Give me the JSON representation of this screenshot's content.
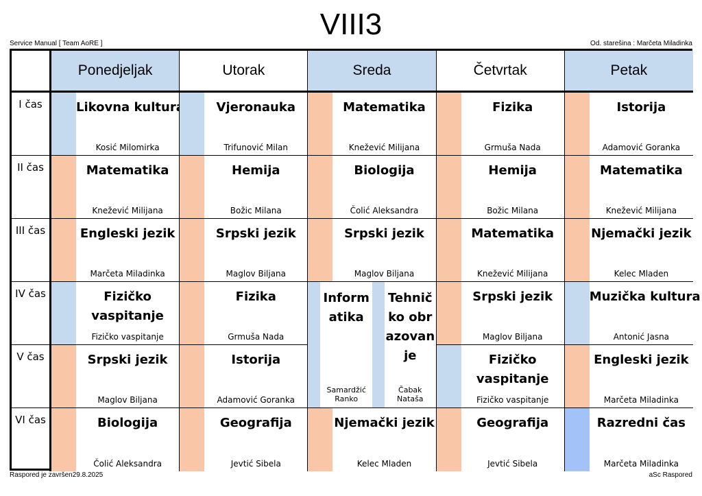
{
  "title": "VIII3",
  "header_left": "Service Manual [ Team AoRE ]",
  "header_right": "Od. starešina : Marčeta Miladinka",
  "footer_left": "Raspored je završen29.8.2025",
  "footer_right": "aSc Raspored",
  "colors": {
    "orange": "#f9c6a8",
    "blue": "#c5d9ef",
    "strongblue": "#a3c2f7"
  },
  "days": [
    "Ponedjeljak",
    "Utorak",
    "Sreda",
    "Četvrtak",
    "Petak"
  ],
  "periods": [
    "I čas",
    "II čas",
    "III čas",
    "IV čas",
    "V čas",
    "VI čas"
  ],
  "lessons": {
    "mon": [
      {
        "subject": "Likovna kultura",
        "teacher": "Kosić Milomirka",
        "color": "blue"
      },
      {
        "subject": "Matematika",
        "teacher": "Knežević Milijana",
        "color": "orange"
      },
      {
        "subject": "Engleski jezik",
        "teacher": "Marčeta Miladinka",
        "color": "orange"
      },
      {
        "subject": "Fizičko vaspitanje",
        "teacher": "Fizičko vaspitanje",
        "color": "blue"
      },
      {
        "subject": "Srpski jezik",
        "teacher": "Maglov Biljana",
        "color": "orange"
      },
      {
        "subject": "Biologija",
        "teacher": "Čolić Aleksandra",
        "color": "orange"
      }
    ],
    "tue": [
      {
        "subject": "Vjeronauka",
        "teacher": "Trifunović Milan",
        "color": "blue"
      },
      {
        "subject": "Hemija",
        "teacher": "Božic Milana",
        "color": "orange"
      },
      {
        "subject": "Srpski jezik",
        "teacher": "Maglov Biljana",
        "color": "orange"
      },
      {
        "subject": "Fizika",
        "teacher": "Grmuša Nada",
        "color": "orange"
      },
      {
        "subject": "Istorija",
        "teacher": "Adamović Goranka",
        "color": "orange"
      },
      {
        "subject": "Geografija",
        "teacher": "Jevtić Sibela",
        "color": "orange"
      }
    ],
    "wed": [
      {
        "subject": "Matematika",
        "teacher": "Knežević Milijana",
        "color": "orange"
      },
      {
        "subject": "Biologija",
        "teacher": "Čolić Aleksandra",
        "color": "orange"
      },
      {
        "subject": "Srpski jezik",
        "teacher": "Maglov Biljana",
        "color": "orange"
      },
      {
        "subject": "Njemački jezik",
        "teacher": "Kelec Mladen",
        "color": "orange"
      }
    ],
    "wed_split": [
      {
        "subject": "Informatika",
        "teacher": "Samardžić Ranko",
        "color": "blue"
      },
      {
        "subject": "Tehničko obrazovanje",
        "teacher": "Čabak Nataša",
        "color": "blue"
      }
    ],
    "thu": [
      {
        "subject": "Fizika",
        "teacher": "Grmuša Nada",
        "color": "orange"
      },
      {
        "subject": "Hemija",
        "teacher": "Božic Milana",
        "color": "orange"
      },
      {
        "subject": "Matematika",
        "teacher": "Knežević Milijana",
        "color": "orange"
      },
      {
        "subject": "Srpski jezik",
        "teacher": "Maglov Biljana",
        "color": "orange"
      },
      {
        "subject": "Fizičko vaspitanje",
        "teacher": "Fizičko vaspitanje",
        "color": "blue"
      },
      {
        "subject": "Geografija",
        "teacher": "Jevtić Sibela",
        "color": "orange"
      }
    ],
    "fri": [
      {
        "subject": "Istorija",
        "teacher": "Adamović Goranka",
        "color": "orange"
      },
      {
        "subject": "Matematika",
        "teacher": "Knežević Milijana",
        "color": "orange"
      },
      {
        "subject": "Njemački jezik",
        "teacher": "Kelec Mladen",
        "color": "orange"
      },
      {
        "subject": "Muzička kultura",
        "teacher": "Antonić Jasna",
        "color": "blue"
      },
      {
        "subject": "Engleski jezik",
        "teacher": "Marčeta Miladinka",
        "color": "orange"
      },
      {
        "subject": "Razredni čas",
        "teacher": "Marčeta Miladinka",
        "color": "strongblue"
      }
    ]
  }
}
